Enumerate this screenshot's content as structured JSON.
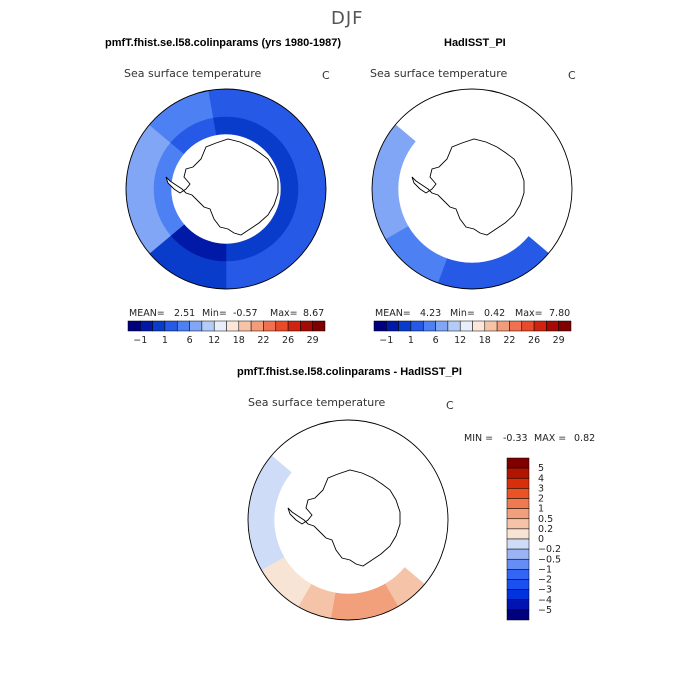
{
  "figure": {
    "season": "DJF",
    "units": "C",
    "variable": "Sea surface temperature"
  },
  "panels": {
    "model": {
      "title": "pmfT.fhist.se.l58.colinparams (yrs 1980-1987)",
      "subtitle": "Sea surface temperature",
      "units": "C",
      "stats": {
        "mean_label": "MEAN=",
        "mean": "2.51",
        "min_label": "Min=",
        "min": "-0.57",
        "max_label": "Max=",
        "max": "8.67"
      }
    },
    "obs": {
      "title": "HadISST_PI",
      "subtitle": "Sea surface temperature",
      "units": "C",
      "stats": {
        "mean_label": "MEAN=",
        "mean": "4.23",
        "min_label": "Min=",
        "min": "0.42",
        "max_label": "Max=",
        "max": "7.80"
      }
    },
    "diff": {
      "title": "pmfT.fhist.se.l58.colinparams - HadISST_PI",
      "subtitle": "Sea surface temperature",
      "units": "C",
      "stats": {
        "min_label": "MIN =",
        "min": "-0.33",
        "max_label": "MAX =",
        "max": "0.82"
      }
    }
  },
  "colors": {
    "abs_scale": [
      "#00007f",
      "#0019a6",
      "#0a3ccc",
      "#2659e6",
      "#4d80f2",
      "#80a6f5",
      "#b3ccf7",
      "#e6eef9",
      "#fbe6d9",
      "#f7c2a6",
      "#f29c7a",
      "#f07050",
      "#e84a2a",
      "#d12410",
      "#a60a05",
      "#7f0000"
    ],
    "diff_scale": [
      "#00007f",
      "#0014b3",
      "#0033dd",
      "#1a4ff0",
      "#3366f5",
      "#668cf5",
      "#99b3f5",
      "#cfdcf7",
      "#f8e4d4",
      "#f5c4a8",
      "#f2a07c",
      "#f07a50",
      "#eb5224",
      "#d82f0a",
      "#b31400",
      "#800000"
    ]
  },
  "chart_data": [
    {
      "type": "heatmap",
      "projection": "south-polar-stereographic",
      "title": "pmfT.fhist.se.l58.colinparams (yrs 1980-1987)",
      "subtitle": "Sea surface temperature",
      "units": "C",
      "mean": 2.51,
      "min": -0.57,
      "max": 8.67,
      "colorbar_ticks": [
        "−1",
        "1",
        "6",
        "12",
        "18",
        "22",
        "26",
        "29"
      ],
      "colorbar_levels": 16,
      "field_summary": "Sea-ice edge ring of values mostly between -1 and 6 C surrounding Antarctica; warmest (pale blue) toward the Atlantic/Weddell side"
    },
    {
      "type": "heatmap",
      "projection": "south-polar-stereographic",
      "title": "HadISST_PI",
      "subtitle": "Sea surface temperature",
      "units": "C",
      "mean": 4.23,
      "min": 0.42,
      "max": 7.8,
      "colorbar_ticks": [
        "−1",
        "1",
        "6",
        "12",
        "18",
        "22",
        "26",
        "29"
      ],
      "colorbar_levels": 16,
      "field_summary": "Narrow crescent of ocean values between 1 and 6 C from the Weddell side around the Pacific sector"
    },
    {
      "type": "heatmap",
      "projection": "south-polar-stereographic",
      "title": "pmfT.fhist.se.l58.colinparams - HadISST_PI",
      "subtitle": "Sea surface temperature",
      "units": "C",
      "min": -0.33,
      "max": 0.82,
      "colorbar_ticks": [
        "5",
        "4",
        "3",
        "2",
        "1",
        "0.5",
        "0.2",
        "0",
        "−0.2",
        "−0.5",
        "−1",
        "−2",
        "−3",
        "−4",
        "−5"
      ],
      "colorbar_levels": 16,
      "field_summary": "Mostly slight positive differences (0 to 0.5) along the Pacific sector crescent, slight negative values near the Weddell side"
    }
  ]
}
